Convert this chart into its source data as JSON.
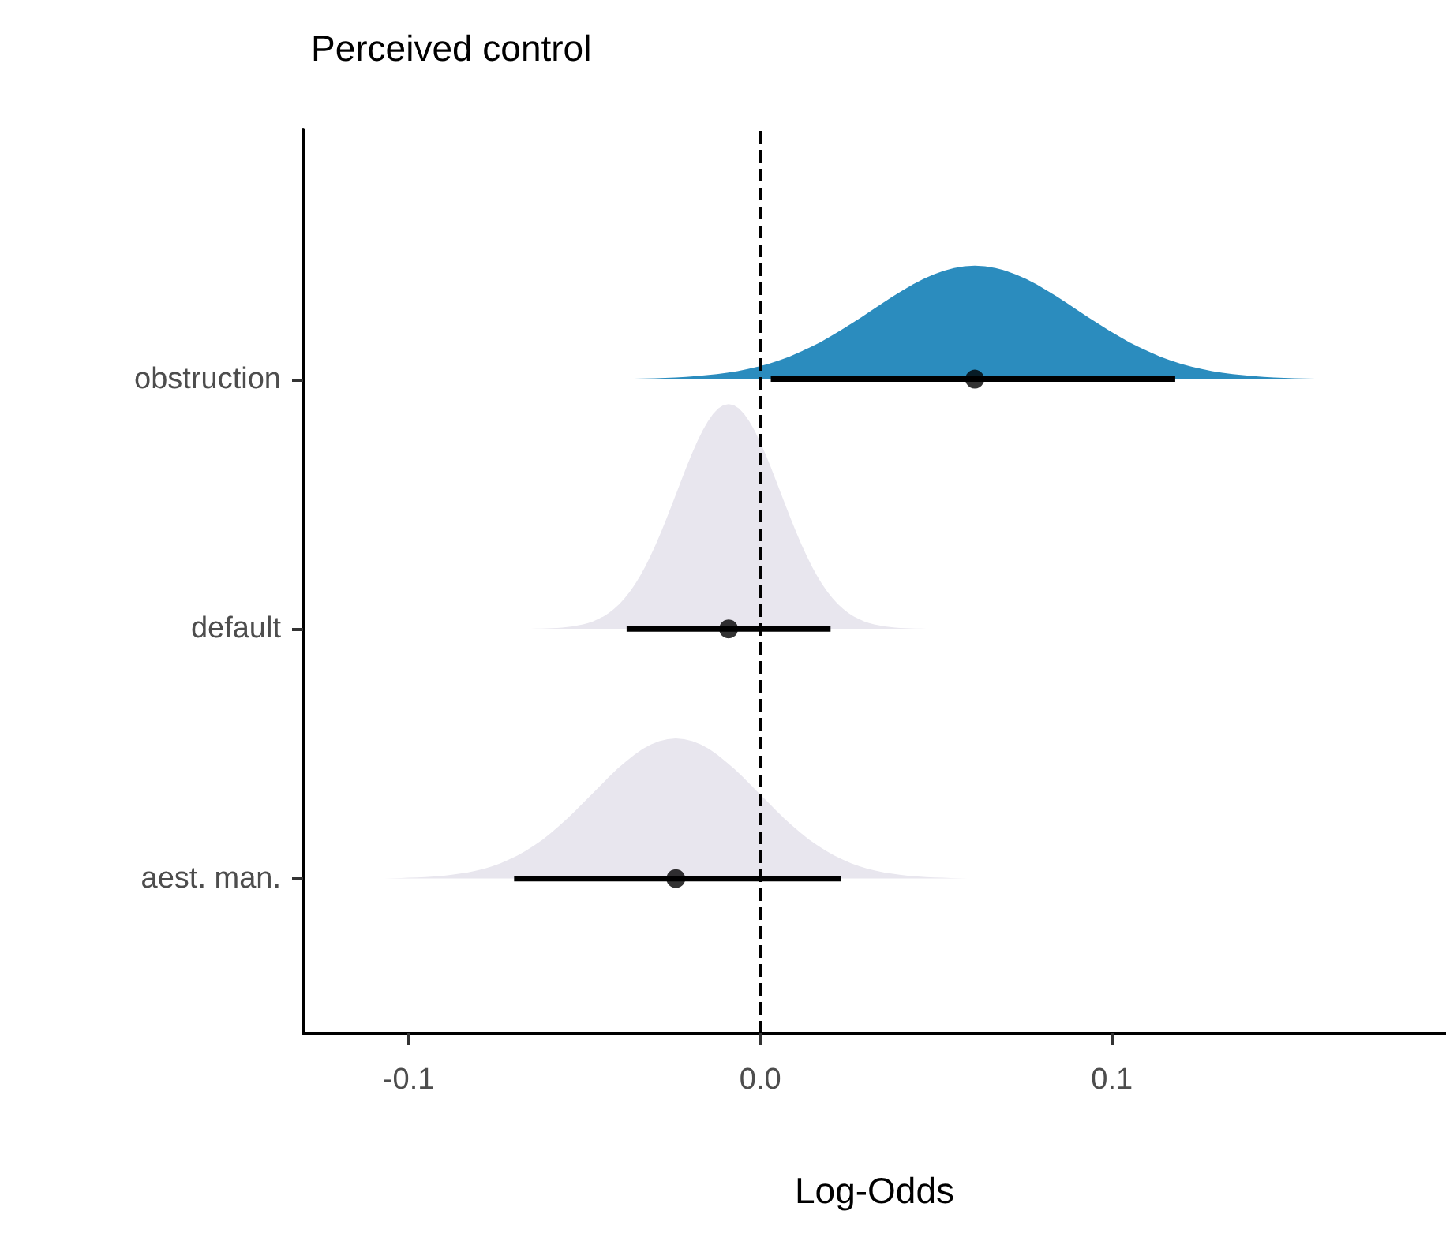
{
  "chart_data": {
    "type": "scatter",
    "title": "Perceived control",
    "xlabel": "Log-Odds",
    "orientation": "horizontal",
    "categories": [
      "obstruction",
      "default",
      "aest. man."
    ],
    "colors": [
      "#2b8cbe",
      "#e8e6ee",
      "#e8e6ee"
    ],
    "xlim": [
      -0.13,
      0.195
    ],
    "xticks": [
      -0.1,
      {
        "value": 0,
        "label": "0.0"
      },
      0.1
    ],
    "ref_lines": [
      {
        "axis": "x",
        "value": 0,
        "line_style": "dashed",
        "color": "#000000"
      }
    ],
    "marker": "circle",
    "series": [
      {
        "color": "#000000",
        "values": [
          0.061,
          -0.009,
          -0.024
        ],
        "errors": [
          [
            0.003,
            0.118
          ],
          [
            -0.038,
            0.02
          ],
          [
            -0.07,
            0.023
          ]
        ]
      }
    ]
  }
}
